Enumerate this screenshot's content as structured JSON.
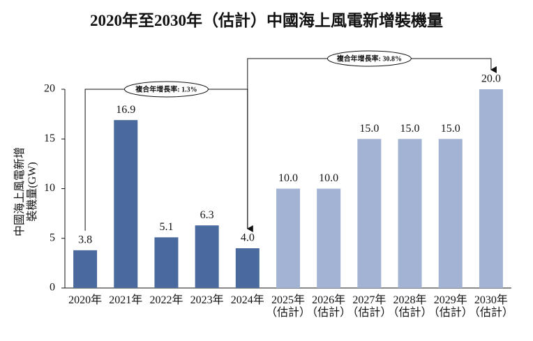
{
  "chart_data": {
    "type": "bar",
    "title": "2020年至2030年（估計）中國海上風電新增裝機量",
    "y_label": "中國海上風電新增\n裝機量(GW)",
    "categories": [
      "2020年",
      "2021年",
      "2022年",
      "2023年",
      "2024年",
      "2025年\n（估計）",
      "2026年\n（估計）",
      "2027年\n（估計）",
      "2028年\n（估計）",
      "2029年\n（估計）",
      "2030年\n（估計）"
    ],
    "values": [
      3.8,
      16.9,
      5.1,
      6.3,
      4.0,
      10.0,
      10.0,
      15.0,
      15.0,
      15.0,
      20.0
    ],
    "value_labels": [
      "3.8",
      "16.9",
      "5.1",
      "6.3",
      "4.0",
      "10.0",
      "10.0",
      "15.0",
      "15.0",
      "15.0",
      "20.0"
    ],
    "colors": [
      "#4a6a9e",
      "#4a6a9e",
      "#4a6a9e",
      "#4a6a9e",
      "#4a6a9e",
      "#a2b3d3",
      "#a2b3d3",
      "#a2b3d3",
      "#a2b3d3",
      "#a2b3d3",
      "#a2b3d3"
    ],
    "annotations": [
      "複合年增長率: 1.3%",
      "複合年增長率: 30.8%"
    ],
    "ylim": [
      0,
      20
    ],
    "yticks": [
      0,
      5,
      10,
      15,
      20
    ],
    "grid": false
  }
}
